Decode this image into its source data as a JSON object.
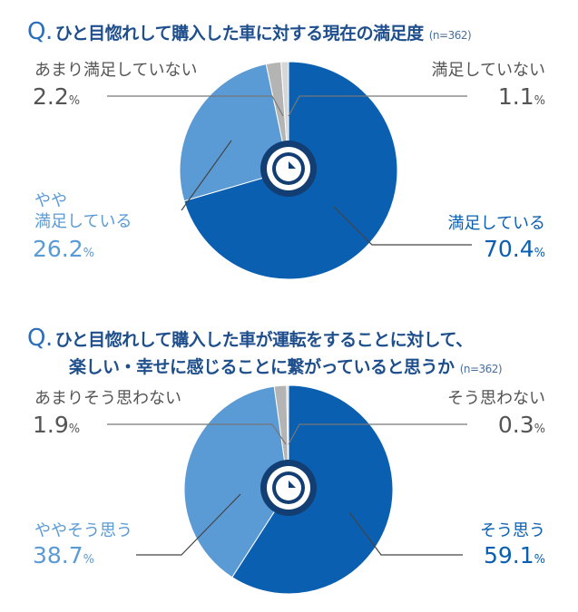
{
  "chart_data": [
    {
      "type": "pie",
      "title": "ひと目惚れして購入した車に対する現在の満足度",
      "n_label": "(n=362)",
      "slices": [
        {
          "label": "満足している",
          "value": 70.4,
          "color": "#0a5fb0"
        },
        {
          "label": "やや満足している",
          "label_lines": [
            "やや",
            "満足している"
          ],
          "value": 26.2,
          "color": "#5b9bd5"
        },
        {
          "label": "あまり満足していない",
          "value": 2.2,
          "color": "#b4b4b4"
        },
        {
          "label": "満足していない",
          "value": 1.1,
          "color": "#d6d6d6"
        }
      ]
    },
    {
      "type": "pie",
      "title": "ひと目惚れして購入した車が運転をすることに対して、楽しい・幸せに感じることに繋がっていると思うか",
      "title_lines": [
        "ひと目惚れして購入した車が運転をすることに対して、",
        "楽しい・幸せに感じることに繋がっていると思うか"
      ],
      "n_label": "(n=362)",
      "slices": [
        {
          "label": "そう思う",
          "value": 59.1,
          "color": "#0a5fb0"
        },
        {
          "label": "ややそう思う",
          "value": 38.7,
          "color": "#5b9bd5"
        },
        {
          "label": "あまりそう思わない",
          "value": 1.9,
          "color": "#b4b4b4"
        },
        {
          "label": "そう思わない",
          "value": 0.3,
          "color": "#d6d6d6"
        }
      ]
    }
  ],
  "percent_unit": "%",
  "q_mark": "Q."
}
